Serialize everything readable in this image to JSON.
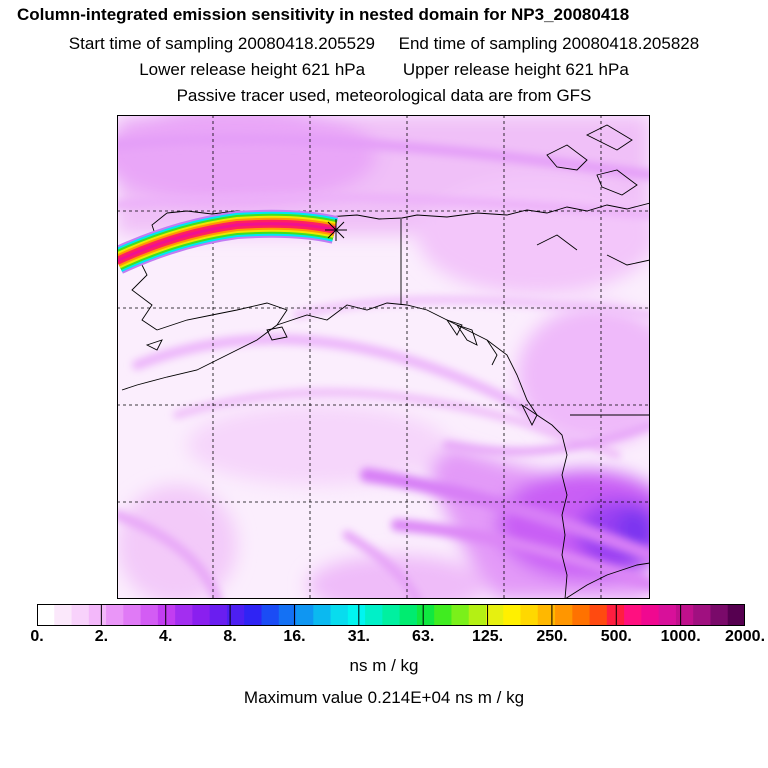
{
  "header": {
    "title": "Column-integrated emission sensitivity in nested domain for NP3_20080418",
    "start_label": "Start time of sampling 20080418.205529",
    "end_label": "End time of sampling 20080418.205828",
    "lower_label": "Lower release height  621 hPa",
    "upper_label": "Upper release height  621 hPa",
    "tracer_note": "Passive tracer used, meteorological data are from GFS"
  },
  "colorbar": {
    "colors": [
      "#ffffff",
      "#fbe8fb",
      "#f8d2fb",
      "#f3b8fa",
      "#ea96f8",
      "#e07af6",
      "#d35cf4",
      "#c23df1",
      "#a32ef0",
      "#8a1fef",
      "#6a1ef0",
      "#4d1ff2",
      "#2f24f4",
      "#1b4cf5",
      "#1471f4",
      "#0f96f2",
      "#0bb9f0",
      "#08dcee",
      "#00f5f0",
      "#00f0c8",
      "#00f0a0",
      "#00ec70",
      "#10e840",
      "#40ec20",
      "#7af01a",
      "#b4f014",
      "#e6f010",
      "#fff000",
      "#ffd800",
      "#ffb800",
      "#ff9600",
      "#ff7200",
      "#ff4a10",
      "#ff1e40",
      "#ff1080",
      "#f00890",
      "#d8109a",
      "#c0108c",
      "#a01080",
      "#7a0a6a",
      "#560050"
    ],
    "tick_labels": [
      "0.",
      "2.",
      "4.",
      "8.",
      "16.",
      "31.",
      "63.",
      "125.",
      "250.",
      "500.",
      "1000.",
      "2000."
    ],
    "units": "ns m / kg",
    "max_value_text": "Maximum value  0.214E+04 ns m / kg"
  },
  "map": {
    "release_marker": "release-site",
    "colors": {
      "light": "#f3c8f8",
      "mid": "#d86ff5",
      "strong": "#b63cf2",
      "core": "#7f2ff0"
    }
  }
}
